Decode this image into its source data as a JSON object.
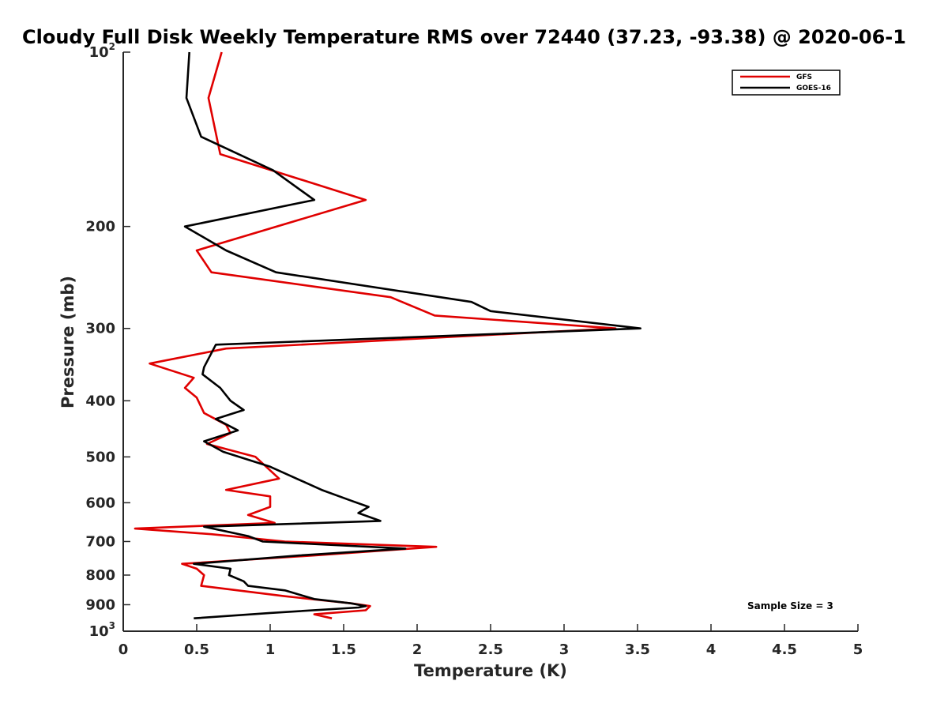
{
  "chart_data": {
    "type": "line",
    "title": "Cloudy Full Disk Weekly Temperature RMS over 72440 (37.23, -93.38) @ 2020-06-1",
    "xlabel": "Temperature (K)",
    "ylabel": "Pressure (mb)",
    "xlim": [
      0,
      5
    ],
    "ylim": [
      100,
      1000
    ],
    "y_scale": "log",
    "y_reversed": true,
    "grid": false,
    "legend_position": "top-right",
    "x_ticks": [
      {
        "value": 0,
        "label": "0"
      },
      {
        "value": 0.5,
        "label": "0.5"
      },
      {
        "value": 1,
        "label": "1"
      },
      {
        "value": 1.5,
        "label": "1.5"
      },
      {
        "value": 2,
        "label": "2"
      },
      {
        "value": 2.5,
        "label": "2.5"
      },
      {
        "value": 3,
        "label": "3"
      },
      {
        "value": 3.5,
        "label": "3.5"
      },
      {
        "value": 4,
        "label": "4"
      },
      {
        "value": 4.5,
        "label": "4.5"
      },
      {
        "value": 5,
        "label": "5"
      }
    ],
    "y_ticks": [
      {
        "value": 100,
        "label": "10",
        "sup": "2"
      },
      {
        "value": 200,
        "label": "200"
      },
      {
        "value": 300,
        "label": "300"
      },
      {
        "value": 400,
        "label": "400"
      },
      {
        "value": 500,
        "label": "500"
      },
      {
        "value": 600,
        "label": "600"
      },
      {
        "value": 700,
        "label": "700"
      },
      {
        "value": 800,
        "label": "800"
      },
      {
        "value": 900,
        "label": "900"
      },
      {
        "value": 1000,
        "label": "10",
        "sup": "3"
      }
    ],
    "annotation": "Sample Size = 3",
    "series": [
      {
        "name": "GFS",
        "color": "#e00000",
        "points": [
          [
            0.67,
            100
          ],
          [
            0.58,
            120
          ],
          [
            0.66,
            150
          ],
          [
            1.65,
            180
          ],
          [
            0.5,
            220
          ],
          [
            0.6,
            240
          ],
          [
            1.82,
            265
          ],
          [
            2.12,
            285
          ],
          [
            3.35,
            300
          ],
          [
            0.7,
            325
          ],
          [
            0.18,
            345
          ],
          [
            0.48,
            365
          ],
          [
            0.42,
            380
          ],
          [
            0.5,
            395
          ],
          [
            0.55,
            420
          ],
          [
            0.7,
            440
          ],
          [
            0.73,
            455
          ],
          [
            0.57,
            475
          ],
          [
            0.9,
            500
          ],
          [
            1.06,
            545
          ],
          [
            0.7,
            570
          ],
          [
            1.0,
            585
          ],
          [
            1.0,
            610
          ],
          [
            0.85,
            630
          ],
          [
            1.03,
            650
          ],
          [
            0.08,
            665
          ],
          [
            0.6,
            680
          ],
          [
            1.1,
            700
          ],
          [
            2.13,
            715
          ],
          [
            1.3,
            740
          ],
          [
            0.4,
            765
          ],
          [
            0.5,
            780
          ],
          [
            0.55,
            800
          ],
          [
            0.53,
            835
          ],
          [
            1.1,
            870
          ],
          [
            1.55,
            895
          ],
          [
            1.68,
            905
          ],
          [
            1.65,
            920
          ],
          [
            1.3,
            935
          ],
          [
            1.42,
            950
          ]
        ]
      },
      {
        "name": "GOES-16",
        "color": "#000000",
        "points": [
          [
            0.45,
            100
          ],
          [
            0.43,
            120
          ],
          [
            0.53,
            140
          ],
          [
            1.02,
            160
          ],
          [
            1.3,
            180
          ],
          [
            0.42,
            200
          ],
          [
            0.7,
            220
          ],
          [
            1.04,
            240
          ],
          [
            2.37,
            270
          ],
          [
            2.5,
            280
          ],
          [
            3.52,
            300
          ],
          [
            0.63,
            320
          ],
          [
            0.55,
            350
          ],
          [
            0.54,
            360
          ],
          [
            0.66,
            380
          ],
          [
            0.73,
            400
          ],
          [
            0.82,
            415
          ],
          [
            0.63,
            430
          ],
          [
            0.78,
            450
          ],
          [
            0.55,
            470
          ],
          [
            0.68,
            490
          ],
          [
            1.0,
            520
          ],
          [
            1.35,
            570
          ],
          [
            1.55,
            595
          ],
          [
            1.67,
            610
          ],
          [
            1.6,
            625
          ],
          [
            1.75,
            645
          ],
          [
            0.55,
            660
          ],
          [
            0.85,
            685
          ],
          [
            0.95,
            700
          ],
          [
            1.92,
            720
          ],
          [
            1.2,
            740
          ],
          [
            0.48,
            765
          ],
          [
            0.73,
            780
          ],
          [
            0.72,
            800
          ],
          [
            0.82,
            820
          ],
          [
            0.85,
            835
          ],
          [
            1.1,
            850
          ],
          [
            1.3,
            880
          ],
          [
            1.55,
            895
          ],
          [
            1.65,
            905
          ],
          [
            1.6,
            910
          ],
          [
            1.0,
            930
          ],
          [
            0.48,
            950
          ]
        ]
      }
    ]
  }
}
